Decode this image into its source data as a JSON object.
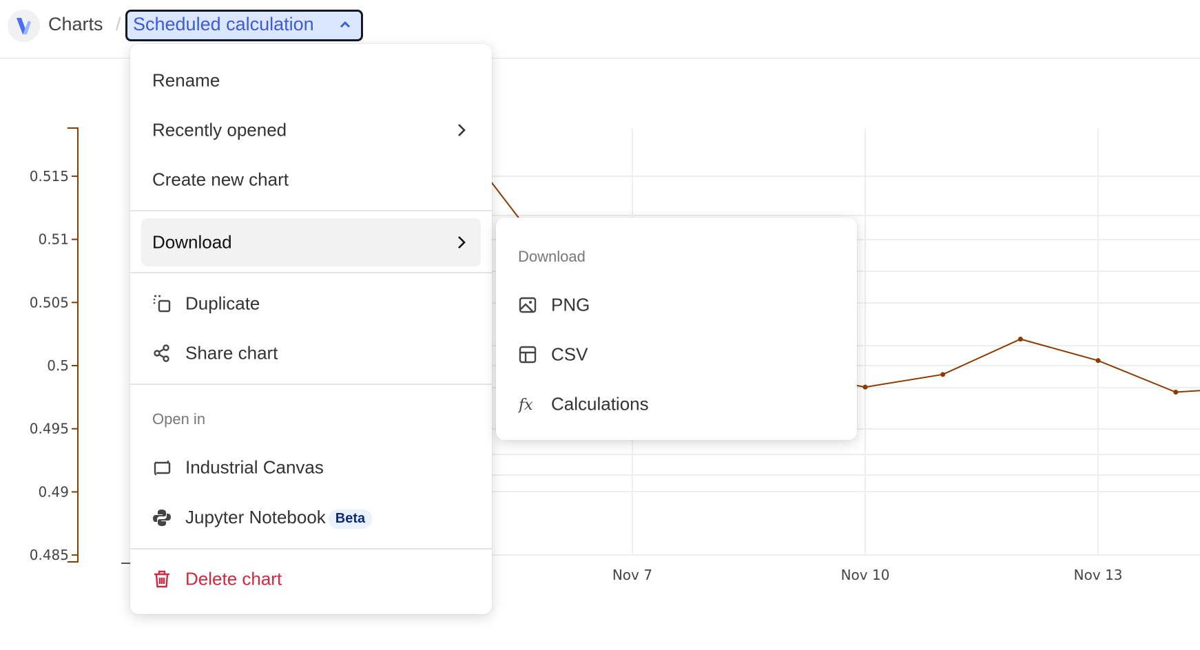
{
  "header": {
    "breadcrumb_root": "Charts",
    "separator": "/",
    "chart_title": "Scheduled calculation"
  },
  "menu": {
    "rename": "Rename",
    "recently_opened": "Recently opened",
    "create_new": "Create new chart",
    "download": "Download",
    "duplicate": "Duplicate",
    "share": "Share chart",
    "open_in_header": "Open in",
    "industrial_canvas": "Industrial Canvas",
    "jupyter": "Jupyter Notebook",
    "beta_badge": "Beta",
    "delete": "Delete chart"
  },
  "submenu": {
    "header": "Download",
    "png": "PNG",
    "csv": "CSV",
    "calculations": "Calculations"
  },
  "colors": {
    "accent": "#3d5ad8",
    "series": "#8b3a00",
    "danger": "#d0293f"
  },
  "chart_data": {
    "type": "line",
    "y_ticks": [
      "0.515",
      "0.51",
      "0.505",
      "0.5",
      "0.495",
      "0.49",
      "0.485"
    ],
    "x_ticks": [
      "Nov 7",
      "Nov 10",
      "Nov 13"
    ],
    "ylim": [
      0.4845,
      0.519
    ],
    "grid": true,
    "series": [
      {
        "color": "#8b3a00",
        "points": [
          {
            "x": "Nov 5",
            "y": 0.516
          },
          {
            "x": "Nov 6",
            "y": 0.508
          },
          {
            "x": "Nov 9",
            "y": 0.4995
          },
          {
            "x": "Nov 10",
            "y": 0.4983
          },
          {
            "x": "Nov 11",
            "y": 0.4993
          },
          {
            "x": "Nov 12",
            "y": 0.5021
          },
          {
            "x": "Nov 13",
            "y": 0.5004
          },
          {
            "x": "Nov 14",
            "y": 0.4979
          },
          {
            "x": "Nov 15",
            "y": 0.4983
          }
        ]
      }
    ]
  }
}
